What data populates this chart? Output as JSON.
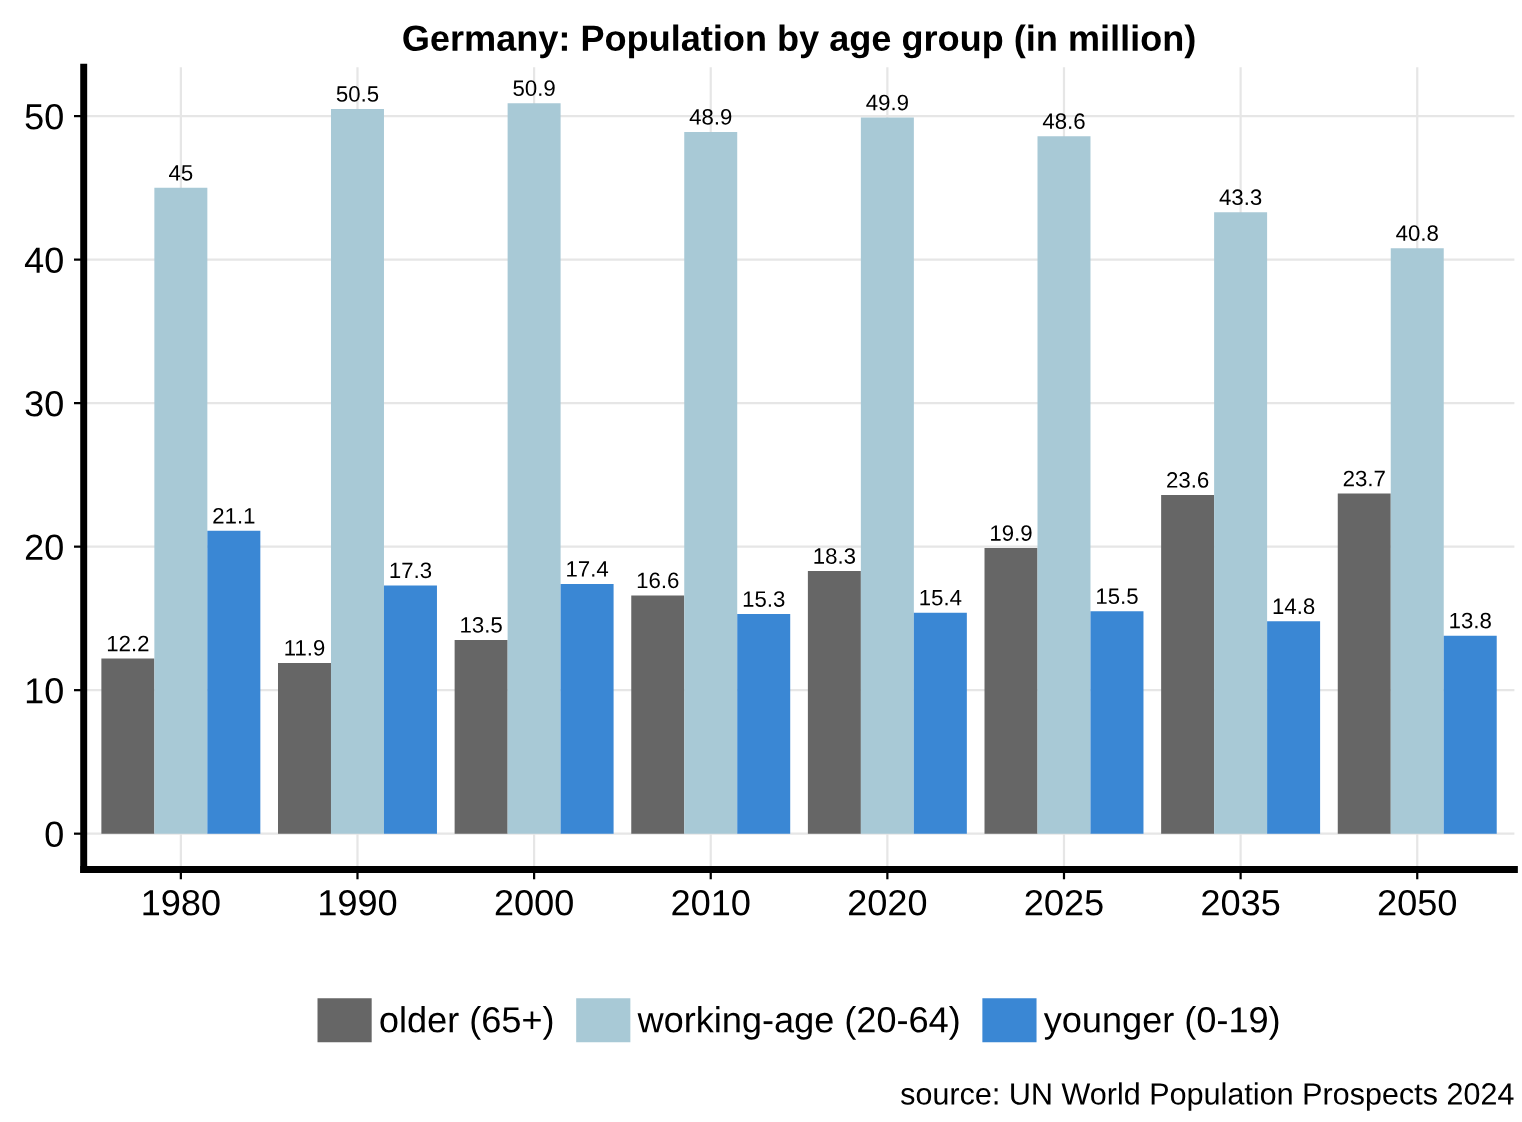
{
  "chart_data": {
    "type": "bar",
    "title": "Germany: Population by age group (in million)",
    "categories": [
      "1980",
      "1990",
      "2000",
      "2010",
      "2020",
      "2025",
      "2035",
      "2050"
    ],
    "series": [
      {
        "name": "older (65+)",
        "color": "#666666",
        "values": [
          12.2,
          11.9,
          13.5,
          16.6,
          18.3,
          19.9,
          23.6,
          23.7
        ]
      },
      {
        "name": "working-age (20-64)",
        "color": "#a8c9d6",
        "values": [
          45,
          50.5,
          50.9,
          48.9,
          49.9,
          48.6,
          43.3,
          40.8
        ]
      },
      {
        "name": "younger (0-19)",
        "color": "#3a87d4",
        "values": [
          21.1,
          17.3,
          17.4,
          15.3,
          15.4,
          15.5,
          14.8,
          13.8
        ]
      }
    ],
    "ylim": [
      -2.5,
      53.4
    ],
    "yticks": [
      0,
      10,
      20,
      30,
      40,
      50
    ],
    "grid": true,
    "legend": "bottom",
    "data_labels": true,
    "annotations": [
      "source: UN World Population Prospects 2024"
    ]
  }
}
